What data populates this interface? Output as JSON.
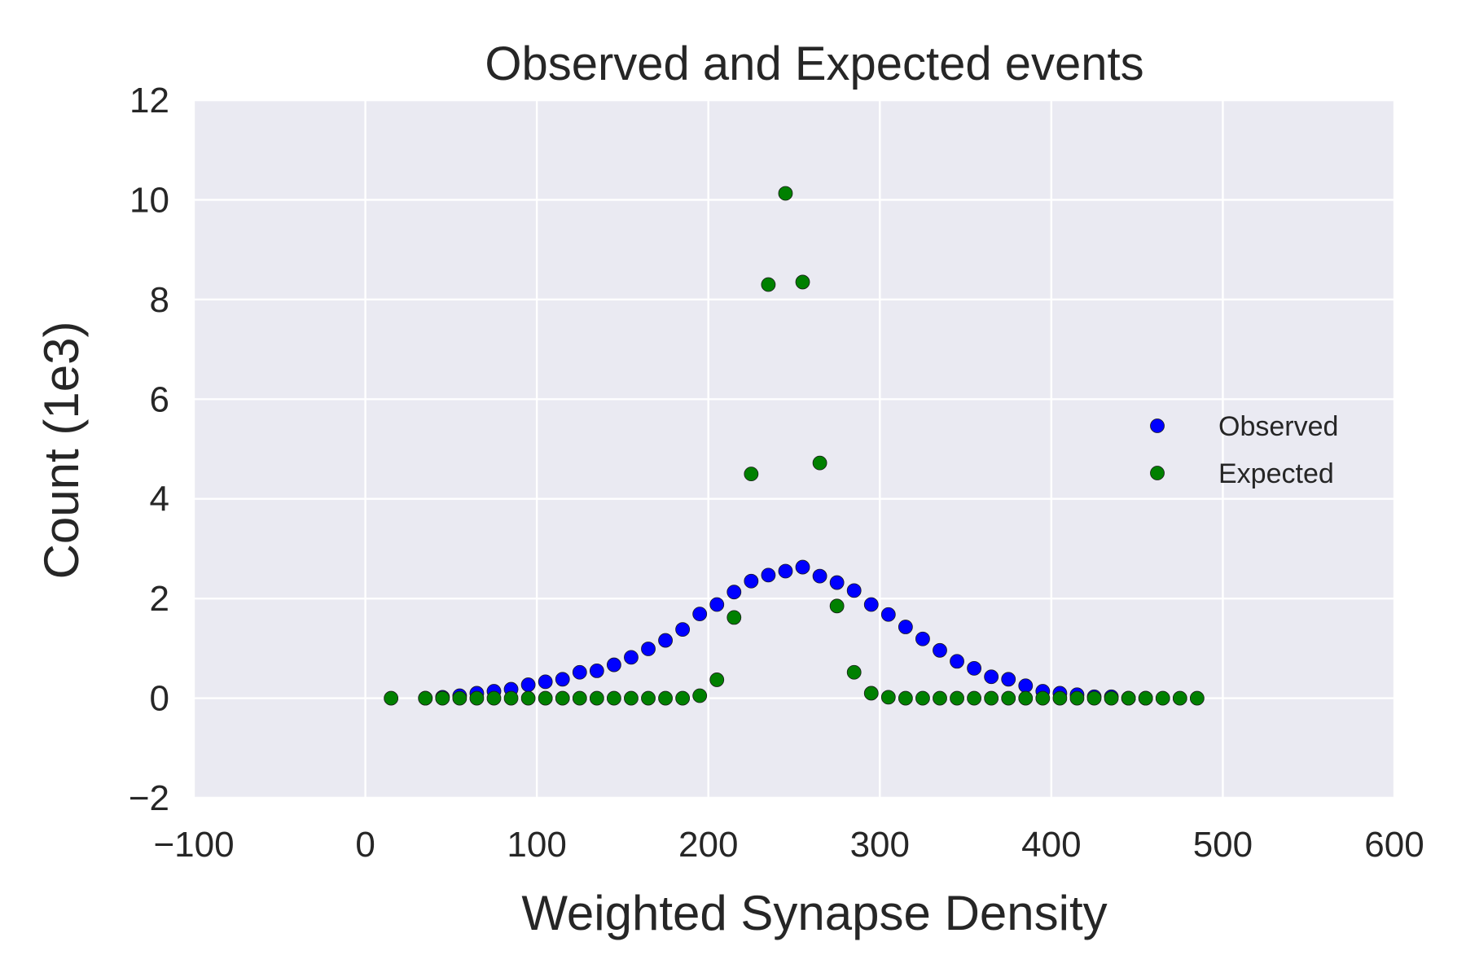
{
  "chart_data": {
    "type": "scatter",
    "title": "Observed and Expected events",
    "xlabel": "Weighted Synapse Density",
    "ylabel": "Count (1e3)",
    "xlim": [
      -100,
      600
    ],
    "ylim": [
      -2,
      12
    ],
    "xticks": [
      -100,
      0,
      100,
      200,
      300,
      400,
      500,
      600
    ],
    "yticks": [
      -2,
      0,
      2,
      4,
      6,
      8,
      10,
      12
    ],
    "xtick_labels": [
      "−100",
      "0",
      "100",
      "200",
      "300",
      "400",
      "500",
      "600"
    ],
    "ytick_labels": [
      "−2",
      "0",
      "2",
      "4",
      "6",
      "8",
      "10",
      "12"
    ],
    "grid": true,
    "legend_position": "right",
    "background_color": "#eaeaf2",
    "series": [
      {
        "name": "Observed",
        "color": "#0000ff",
        "x": [
          35,
          45,
          55,
          65,
          75,
          85,
          95,
          105,
          115,
          125,
          135,
          145,
          155,
          165,
          175,
          185,
          195,
          205,
          215,
          225,
          235,
          245,
          255,
          265,
          275,
          285,
          295,
          305,
          315,
          325,
          335,
          345,
          355,
          365,
          375,
          385,
          395,
          405,
          415,
          425,
          435,
          445,
          455
        ],
        "y": [
          0.0,
          0.02,
          0.05,
          0.1,
          0.14,
          0.18,
          0.27,
          0.33,
          0.38,
          0.52,
          0.55,
          0.67,
          0.82,
          0.99,
          1.16,
          1.38,
          1.69,
          1.88,
          2.13,
          2.35,
          2.47,
          2.55,
          2.63,
          2.45,
          2.32,
          2.16,
          1.88,
          1.68,
          1.43,
          1.19,
          0.96,
          0.74,
          0.6,
          0.43,
          0.38,
          0.25,
          0.14,
          0.1,
          0.07,
          0.03,
          0.03,
          0.0,
          0.0
        ]
      },
      {
        "name": "Expected",
        "color": "#008000",
        "x": [
          15,
          35,
          45,
          55,
          65,
          75,
          85,
          95,
          105,
          115,
          125,
          135,
          145,
          155,
          165,
          175,
          185,
          195,
          205,
          215,
          225,
          235,
          245,
          255,
          265,
          275,
          285,
          295,
          305,
          315,
          325,
          335,
          345,
          355,
          365,
          375,
          385,
          395,
          405,
          415,
          425,
          435,
          445,
          455,
          465,
          475,
          485
        ],
        "y": [
          0.0,
          0.0,
          0.0,
          0.0,
          0.0,
          0.0,
          0.0,
          0.0,
          0.0,
          0.0,
          0.0,
          0.0,
          0.0,
          0.0,
          0.0,
          0.0,
          0.0,
          0.05,
          0.37,
          1.62,
          4.5,
          8.3,
          10.13,
          8.35,
          4.72,
          1.85,
          0.52,
          0.1,
          0.02,
          0.0,
          0.0,
          0.0,
          0.0,
          0.0,
          0.0,
          0.0,
          0.0,
          0.0,
          0.0,
          0.0,
          0.0,
          0.0,
          0.0,
          0.0,
          0.0,
          0.0,
          0.0
        ]
      }
    ]
  }
}
